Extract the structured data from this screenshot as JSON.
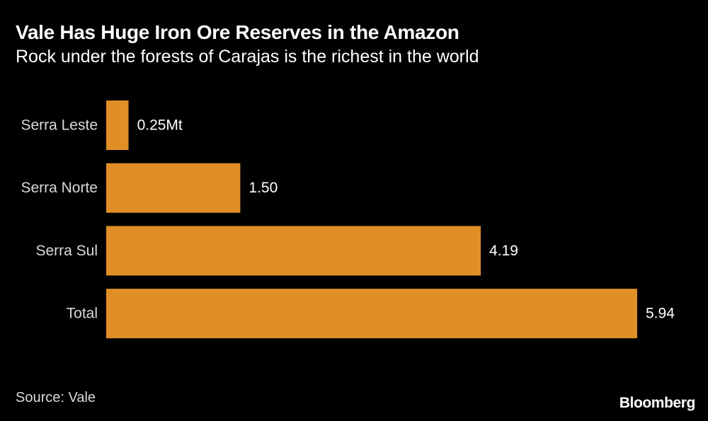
{
  "header": {
    "title": "Vale Has Huge Iron Ore Reserves in the Amazon",
    "subtitle": "Rock under the forests of Carajas is the richest in the world"
  },
  "footer": {
    "source": "Source: Vale",
    "brand": "Bloomberg"
  },
  "colors": {
    "bar": "#E08F26",
    "background": "#000000",
    "text": "#FFFFFF"
  },
  "chart_data": {
    "type": "bar",
    "orientation": "horizontal",
    "title": "Vale Has Huge Iron Ore Reserves in the Amazon",
    "subtitle": "Rock under the forests of Carajas is the richest in the world",
    "categories": [
      "Serra Leste",
      "Serra Norte",
      "Serra Sul",
      "Total"
    ],
    "values": [
      0.25,
      1.5,
      4.19,
      5.94
    ],
    "data_labels": [
      "0.25Mt",
      "1.50",
      "4.19",
      "5.94"
    ],
    "xlim": [
      0,
      5.94
    ],
    "grid": false,
    "legend": "none"
  }
}
